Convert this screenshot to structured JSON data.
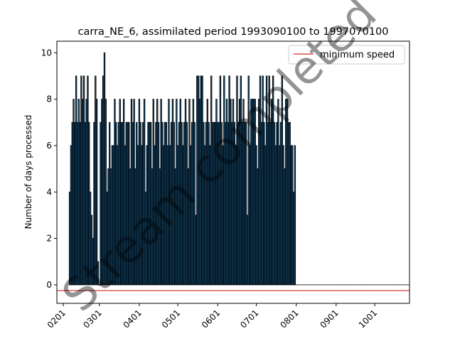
{
  "chart_data": {
    "type": "bar",
    "title": "carra_NE_6, assimilated period 1993090100 to 1997070100",
    "xlabel": "",
    "ylabel": "Number of days processed",
    "xlim": [
      "2023-01-27",
      "2023-10-28"
    ],
    "ylim": [
      -0.8,
      10.5
    ],
    "yticks": [
      0,
      2,
      4,
      6,
      8,
      10
    ],
    "xticks": [
      {
        "date": "2023-02-01",
        "label": "0201"
      },
      {
        "date": "2023-03-01",
        "label": "0301"
      },
      {
        "date": "2023-04-01",
        "label": "0401"
      },
      {
        "date": "2023-05-01",
        "label": "0501"
      },
      {
        "date": "2023-06-01",
        "label": "0601"
      },
      {
        "date": "2023-07-01",
        "label": "0701"
      },
      {
        "date": "2023-08-01",
        "label": "0801"
      },
      {
        "date": "2023-09-01",
        "label": "0901"
      },
      {
        "date": "2023-10-01",
        "label": "1001"
      }
    ],
    "series": [
      {
        "name": "",
        "color": "#1f77b4",
        "edgecolor": "#000000",
        "start_date": "2023-02-06",
        "values": [
          4,
          6,
          7,
          8,
          7,
          9,
          7,
          8,
          7,
          9,
          8,
          9,
          7,
          8,
          9,
          7,
          4,
          3,
          2,
          7,
          9,
          8,
          1,
          0,
          7,
          8,
          9,
          10,
          8,
          4,
          5,
          7,
          5,
          6,
          6,
          8,
          7,
          6,
          7,
          8,
          7,
          7,
          8,
          6,
          7,
          7,
          7,
          5,
          8,
          7,
          8,
          5,
          7,
          6,
          8,
          7,
          6,
          7,
          8,
          4,
          6,
          7,
          7,
          7,
          5,
          8,
          6,
          7,
          8,
          7,
          5,
          8,
          7,
          6,
          7,
          7,
          6,
          8,
          6,
          7,
          8,
          7,
          5,
          8,
          6,
          7,
          8,
          7,
          6,
          7,
          8,
          7,
          5,
          8,
          6,
          7,
          8,
          7,
          3,
          9,
          9,
          8,
          9,
          9,
          7,
          6,
          7,
          8,
          7,
          6,
          9,
          7,
          7,
          7,
          8,
          7,
          7,
          9,
          7,
          6,
          9,
          7,
          8,
          7,
          9,
          8,
          7,
          8,
          7,
          6,
          9,
          7,
          8,
          9,
          7,
          8,
          7,
          7,
          3,
          9,
          6,
          8,
          8,
          8,
          8,
          6,
          5,
          8,
          9,
          7,
          9,
          7,
          6,
          9,
          7,
          9,
          7,
          8,
          9,
          7,
          6,
          7,
          8,
          6,
          7,
          9,
          6,
          5,
          8,
          8,
          7,
          7,
          6,
          6,
          4,
          6
        ],
        "trailing_zero_until": "2023-10-28"
      },
      {
        "name": "minimum speed",
        "type": "hline",
        "color": "#d62728",
        "value": -0.25
      }
    ],
    "legend": {
      "location": "top-right"
    },
    "grid": false,
    "watermark": "Stream completed",
    "x_tick_rotation": 45
  }
}
